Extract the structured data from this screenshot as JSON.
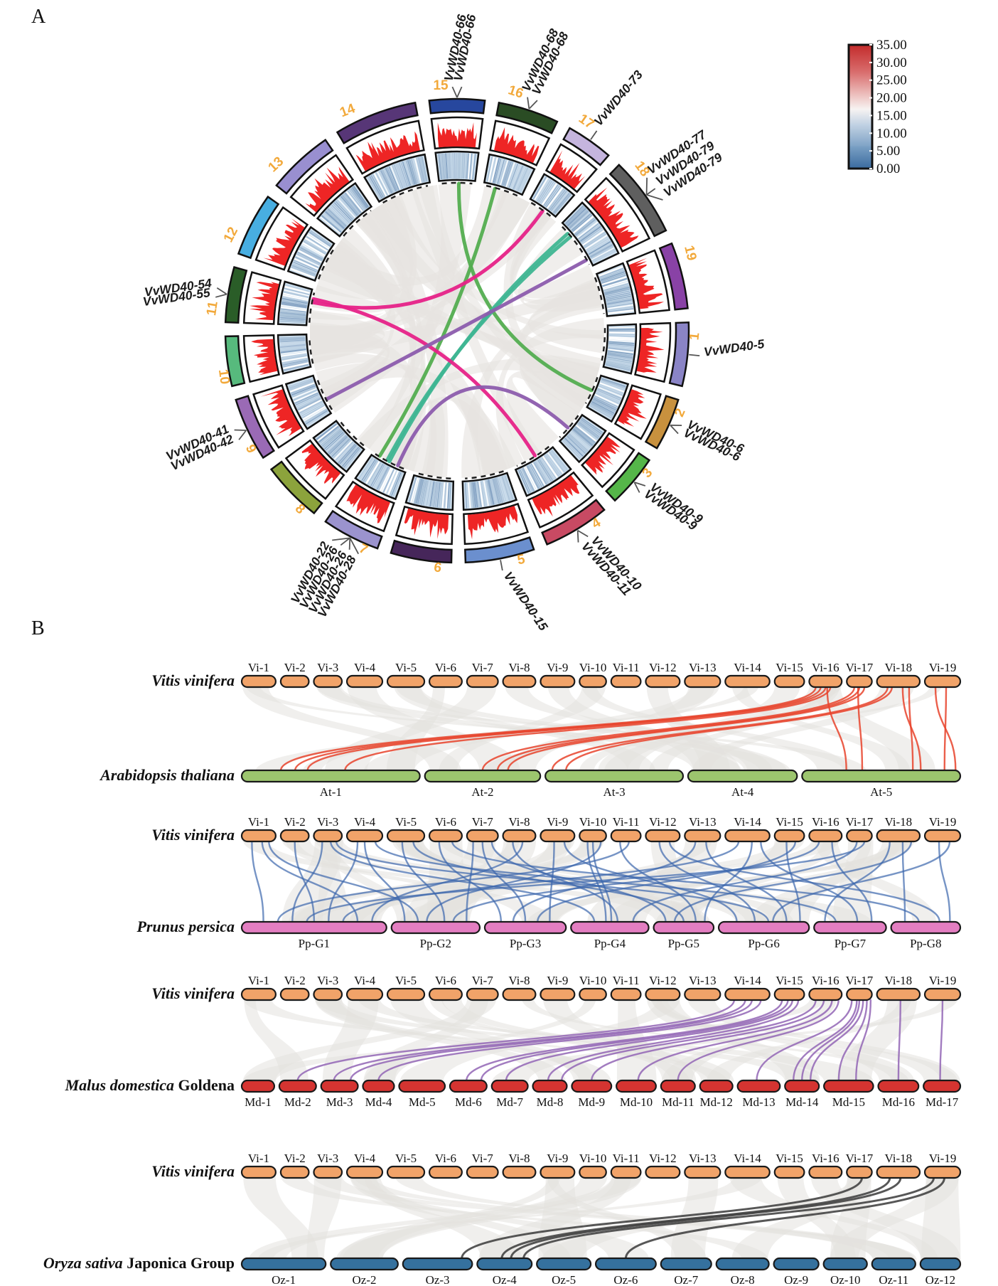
{
  "panels": {
    "a": "A",
    "b": "B"
  },
  "legend": {
    "ticks": [
      "35.00",
      "30.00",
      "25.00",
      "20.00",
      "15.00",
      "10.00",
      "5.00",
      "0.00"
    ],
    "top_color": "#c32b2b",
    "mid_color": "#f7f3f2",
    "bottom_color": "#3a6b9f"
  },
  "circos": {
    "number_color": "#F2A93B",
    "red_track_color": "#EE2525",
    "blue_track_base": "#CFE0EE",
    "ribbon_color": "#E6E4E1",
    "chromosomes": [
      {
        "num": "1",
        "size": 23,
        "color": "#8A84C6",
        "genes": [
          "VvWD40-5"
        ]
      },
      {
        "num": "2",
        "size": 19,
        "color": "#C8913E",
        "genes": [
          "VvWD40-6",
          "VvWD40-6"
        ]
      },
      {
        "num": "3",
        "size": 19,
        "color": "#55B649",
        "genes": [
          "VvWD40-9",
          "VvWD40-9"
        ]
      },
      {
        "num": "4",
        "size": 24,
        "color": "#C84A63",
        "genes": [
          "VvWD40-10",
          "VvWD40-11"
        ]
      },
      {
        "num": "5",
        "size": 25,
        "color": "#6B8FCE",
        "genes": [
          "VvWD40-15"
        ]
      },
      {
        "num": "6",
        "size": 22,
        "color": "#46265A",
        "genes": []
      },
      {
        "num": "7",
        "size": 21,
        "color": "#9B93CE",
        "genes": [
          "VvWD40-28",
          "VvWD40-26",
          "VvWD40-26",
          "VvWD40-22"
        ]
      },
      {
        "num": "8",
        "size": 22,
        "color": "#8CA33C",
        "genes": []
      },
      {
        "num": "9",
        "size": 23,
        "color": "#9A6AB5",
        "genes": [
          "VvWD40-42",
          "VvWD40-41"
        ]
      },
      {
        "num": "10",
        "size": 18,
        "color": "#57BA7D",
        "genes": []
      },
      {
        "num": "11",
        "size": 20,
        "color": "#2A5D28",
        "genes": [
          "VvWD40-55",
          "VvWD40-54"
        ]
      },
      {
        "num": "12",
        "size": 23,
        "color": "#48AEE1",
        "genes": []
      },
      {
        "num": "13",
        "size": 24,
        "color": "#998FD0",
        "genes": []
      },
      {
        "num": "14",
        "size": 30,
        "color": "#573677",
        "genes": []
      },
      {
        "num": "15",
        "size": 20,
        "color": "#27479E",
        "genes": [
          "VvWD40-66",
          "VvWD40-66"
        ]
      },
      {
        "num": "16",
        "size": 22,
        "color": "#2A4C24",
        "genes": [
          "VvWD40-68",
          "VvWD40-68"
        ]
      },
      {
        "num": "17",
        "size": 17,
        "color": "#C5B5DE",
        "genes": [
          "VvWD40-73"
        ]
      },
      {
        "num": "18",
        "size": 29,
        "color": "#5F5F5F",
        "genes": [
          "VvWD40-77",
          "VvWD40-79",
          "VvWD40-79"
        ]
      },
      {
        "num": "19",
        "size": 24,
        "color": "#8942A6",
        "genes": []
      }
    ],
    "links": [
      {
        "color": "#53AD50",
        "a": [
          15,
          0.55
        ],
        "b": [
          2,
          0.5
        ]
      },
      {
        "color": "#53AD50",
        "a": [
          16,
          0.3
        ],
        "b": [
          7,
          0.8
        ]
      },
      {
        "color": "#3FB592",
        "a": [
          18,
          0.22
        ],
        "b": [
          7,
          0.5
        ]
      },
      {
        "color": "#3FB592",
        "a": [
          18,
          0.3
        ],
        "b": [
          7,
          0.57
        ]
      },
      {
        "color": "#E62288",
        "a": [
          17,
          0.55
        ],
        "b": [
          11,
          0.65
        ]
      },
      {
        "color": "#E62288",
        "a": [
          11,
          0.75
        ],
        "b": [
          4,
          0.45
        ]
      },
      {
        "color": "#8C5CAD",
        "a": [
          9,
          0.35
        ],
        "b": [
          18,
          0.85
        ]
      },
      {
        "color": "#8C5CAD",
        "a": [
          7,
          0.25
        ],
        "b": [
          3,
          0.55
        ]
      }
    ]
  },
  "synteny": {
    "vitis": {
      "name_italic": "Vitis vinifera",
      "name_regular": "",
      "color": "#F1A369",
      "labels": [
        "Vi-1",
        "Vi-2",
        "Vi-3",
        "Vi-4",
        "Vi-5",
        "Vi-6",
        "Vi-7",
        "Vi-8",
        "Vi-9",
        "Vi-10",
        "Vi-11",
        "Vi-12",
        "Vi-13",
        "Vi-14",
        "Vi-15",
        "Vi-16",
        "Vi-17",
        "Vi-18",
        "Vi-19"
      ],
      "sizes": [
        23,
        19,
        19,
        24,
        25,
        22,
        21,
        22,
        23,
        18,
        20,
        23,
        24,
        30,
        20,
        22,
        17,
        29,
        24
      ]
    },
    "blocks": [
      {
        "name_italic": "Arabidopsis thaliana",
        "name_regular": "",
        "color": "#9CC56E",
        "labels": [
          "At-1",
          "At-2",
          "At-3",
          "At-4",
          "At-5"
        ],
        "sizes": [
          30.4,
          19.7,
          23.5,
          18.6,
          27.0
        ],
        "link_color": "#E8432B",
        "links": [
          [
            16,
            0.2,
            1,
            0.22
          ],
          [
            16,
            0.35,
            1,
            0.3
          ],
          [
            16,
            0.5,
            1,
            0.37
          ],
          [
            16,
            0.65,
            1,
            0.58
          ],
          [
            17,
            0.3,
            2,
            0.5
          ],
          [
            17,
            0.5,
            2,
            0.63
          ],
          [
            17,
            0.7,
            2,
            0.72
          ],
          [
            18,
            0.25,
            3,
            0.05
          ],
          [
            18,
            0.35,
            3,
            0.15
          ],
          [
            16,
            0.55,
            5,
            0.28
          ],
          [
            17,
            0.45,
            5,
            0.38
          ],
          [
            18,
            0.6,
            5,
            0.75
          ],
          [
            18,
            0.75,
            5,
            0.7
          ],
          [
            19,
            0.3,
            5,
            0.97
          ],
          [
            19,
            0.6,
            5,
            0.9
          ]
        ]
      },
      {
        "name_italic": "Prunus persica",
        "name_regular": "",
        "color": "#E37EC1",
        "labels": [
          "Pp-G1",
          "Pp-G2",
          "Pp-G3",
          "Pp-G4",
          "Pp-G5",
          "Pp-G6",
          "Pp-G7",
          "Pp-G8"
        ],
        "sizes": [
          205,
          125,
          115,
          110,
          85,
          128,
          102,
          98
        ],
        "link_color": "#3C66AC",
        "links": [
          [
            1,
            0.3,
            1,
            0.15
          ],
          [
            1,
            0.6,
            1,
            0.8
          ],
          [
            1,
            0.8,
            2,
            0.3
          ],
          [
            2,
            0.5,
            1,
            0.5
          ],
          [
            3,
            0.3,
            1,
            0.35
          ],
          [
            3,
            0.6,
            4,
            0.3
          ],
          [
            3,
            0.8,
            6,
            0.55
          ],
          [
            4,
            0.3,
            1,
            0.6
          ],
          [
            4,
            0.5,
            2,
            0.15
          ],
          [
            4,
            0.8,
            7,
            0.3
          ],
          [
            5,
            0.4,
            2,
            0.6
          ],
          [
            5,
            0.7,
            5,
            0.5
          ],
          [
            6,
            0.3,
            3,
            0.2
          ],
          [
            6,
            0.7,
            8,
            0.4
          ],
          [
            7,
            0.2,
            2,
            0.85
          ],
          [
            7,
            0.5,
            3,
            0.5
          ],
          [
            7,
            0.8,
            5,
            0.2
          ],
          [
            8,
            0.3,
            4,
            0.6
          ],
          [
            8,
            0.6,
            1,
            0.9
          ],
          [
            9,
            0.4,
            3,
            0.8
          ],
          [
            9,
            0.7,
            6,
            0.2
          ],
          [
            10,
            0.3,
            4,
            0.45
          ],
          [
            10,
            0.5,
            4,
            0.52
          ],
          [
            10,
            0.8,
            2,
            0.4
          ],
          [
            11,
            0.3,
            5,
            0.7
          ],
          [
            11,
            0.6,
            1,
            0.25
          ],
          [
            12,
            0.4,
            6,
            0.4
          ],
          [
            12,
            0.7,
            8,
            0.7
          ],
          [
            13,
            0.3,
            3,
            0.35
          ],
          [
            13,
            0.6,
            6,
            0.75
          ],
          [
            14,
            0.3,
            1,
            0.7
          ],
          [
            14,
            0.6,
            5,
            0.85
          ],
          [
            14,
            0.8,
            7,
            0.6
          ],
          [
            15,
            0.4,
            6,
            0.9
          ],
          [
            15,
            0.7,
            3,
            0.65
          ],
          [
            16,
            0.3,
            2,
            0.7
          ],
          [
            16,
            0.7,
            7,
            0.8
          ],
          [
            17,
            0.4,
            4,
            0.8
          ],
          [
            17,
            0.7,
            1,
            0.45
          ],
          [
            18,
            0.3,
            7,
            0.15
          ],
          [
            18,
            0.6,
            8,
            0.2
          ],
          [
            18,
            0.8,
            5,
            0.35
          ],
          [
            19,
            0.4,
            8,
            0.85
          ],
          [
            19,
            0.7,
            6,
            0.6
          ]
        ]
      },
      {
        "name_italic": "Malus domestica",
        "name_regular": " Goldena",
        "color": "#D53431",
        "labels": [
          "Md-1",
          "Md-2",
          "Md-3",
          "Md-4",
          "Md-5",
          "Md-6",
          "Md-7",
          "Md-8",
          "Md-9",
          "Md-10",
          "Md-11",
          "Md-12",
          "Md-13",
          "Md-14",
          "Md-15",
          "Md-16",
          "Md-17"
        ],
        "sizes": [
          47,
          53,
          53,
          45,
          66,
          53,
          52,
          49,
          57,
          57,
          49,
          47,
          61,
          49,
          71,
          58,
          53
        ],
        "link_color": "#9265B5",
        "links": [
          [
            14,
            0.2,
            2,
            0.5
          ],
          [
            14,
            0.45,
            3,
            0.35
          ],
          [
            14,
            0.6,
            3,
            0.8
          ],
          [
            14,
            0.8,
            4,
            0.5
          ],
          [
            15,
            0.25,
            6,
            0.45
          ],
          [
            15,
            0.45,
            6,
            0.85
          ],
          [
            15,
            0.6,
            7,
            0.4
          ],
          [
            15,
            0.8,
            8,
            0.45
          ],
          [
            16,
            0.2,
            8,
            0.85
          ],
          [
            16,
            0.45,
            9,
            0.5
          ],
          [
            16,
            0.7,
            10,
            0.55
          ],
          [
            16,
            0.9,
            11,
            0.5
          ],
          [
            17,
            0.2,
            13,
            0.45
          ],
          [
            17,
            0.4,
            14,
            0.25
          ],
          [
            17,
            0.5,
            14,
            0.5
          ],
          [
            17,
            0.65,
            14,
            0.75
          ],
          [
            17,
            0.8,
            15,
            0.3
          ],
          [
            17,
            0.95,
            15,
            0.65
          ],
          [
            18,
            0.55,
            16,
            0.5
          ],
          [
            19,
            0.5,
            17,
            0.45
          ]
        ]
      },
      {
        "name_italic": "Oryza sativa",
        "name_regular": " Japonica Group",
        "color": "#35719E",
        "labels": [
          "Oz-1",
          "Oz-2",
          "Oz-3",
          "Oz-4",
          "Oz-5",
          "Oz-6",
          "Oz-7",
          "Oz-8",
          "Oz-9",
          "Oz-10",
          "Oz-11",
          "Oz-12"
        ],
        "sizes": [
          120,
          96,
          99,
          78,
          77,
          86,
          72,
          75,
          64,
          62,
          62,
          57
        ],
        "link_color": "#3A3A3A",
        "links": [
          [
            17,
            0.6,
            3,
            0.85
          ],
          [
            18,
            0.3,
            4,
            0.45
          ],
          [
            18,
            0.55,
            4,
            0.62
          ],
          [
            19,
            0.25,
            4,
            0.85
          ],
          [
            19,
            0.55,
            6,
            0.5
          ]
        ]
      }
    ]
  }
}
